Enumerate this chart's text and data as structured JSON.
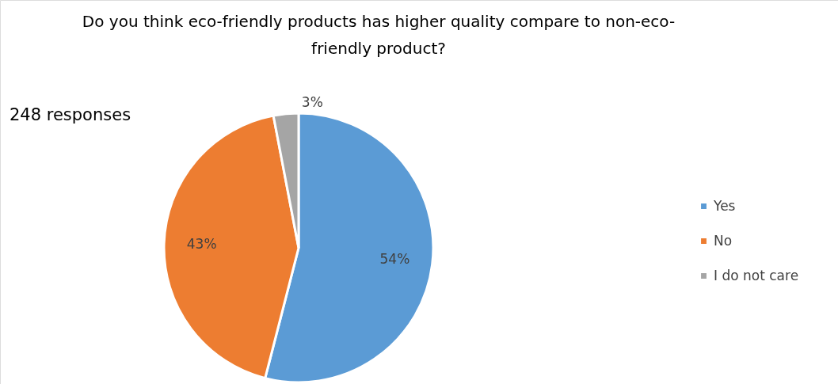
{
  "chart_data": {
    "type": "pie",
    "title": "Do you think eco-friendly products has higher quality compare to non-eco-friendly product?",
    "annotations": [
      "248 responses"
    ],
    "categories": [
      "Yes",
      "No",
      "I do not care"
    ],
    "values": [
      54,
      43,
      3
    ],
    "colors": [
      "#5b9bd5",
      "#ed7d31",
      "#a5a5a5"
    ],
    "value_labels": [
      "54%",
      "43%",
      "3%"
    ],
    "legend": "right"
  }
}
